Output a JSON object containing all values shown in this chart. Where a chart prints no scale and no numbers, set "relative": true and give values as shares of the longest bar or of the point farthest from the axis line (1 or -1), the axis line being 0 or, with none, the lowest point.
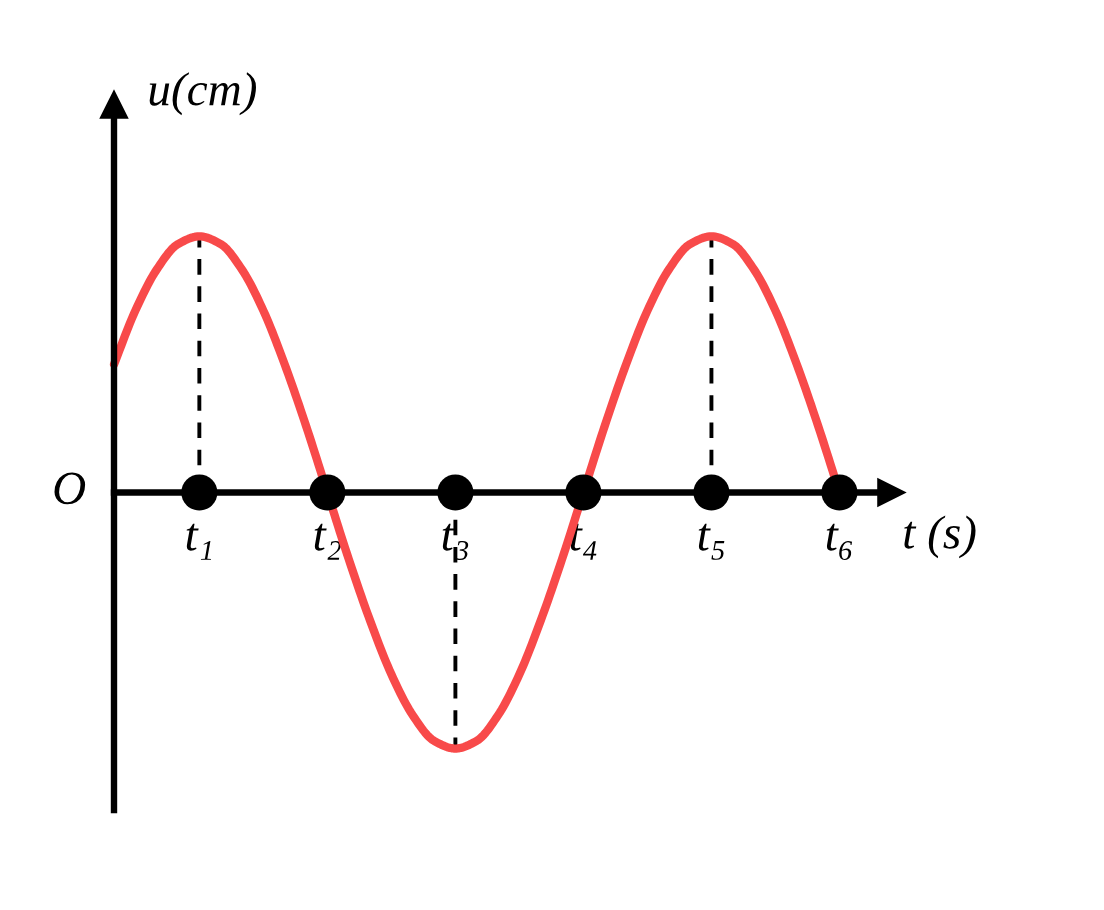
{
  "chart_data": {
    "type": "line",
    "relative": true,
    "xlabel": "t (s)",
    "ylabel": "u(cm)",
    "annotations": [
      "O"
    ],
    "categories": [
      null,
      null,
      null,
      null,
      "t₁",
      null,
      null,
      null,
      null,
      null,
      "t₂",
      null,
      null,
      null,
      null,
      null,
      "t₃",
      null,
      null,
      null,
      null,
      null,
      "t₄",
      null,
      null,
      null,
      null,
      null,
      "t₅",
      null,
      null,
      null,
      null,
      null,
      "t₆"
    ],
    "series": [
      {
        "color": "#f84a4a",
        "values": [
          0.5,
          0.71,
          0.87,
          0.97,
          1,
          0.97,
          0.87,
          0.71,
          0.5,
          0.26,
          0,
          -0.26,
          -0.5,
          -0.71,
          -0.87,
          -0.97,
          -1,
          -0.97,
          -0.87,
          -0.71,
          -0.5,
          -0.26,
          0,
          0.26,
          0.5,
          0.71,
          0.87,
          0.97,
          1,
          0.97,
          0.87,
          0.71,
          0.5,
          0.26,
          0
        ]
      },
      {
        "type": "line",
        "color": "#000000",
        "line_style": "dashed",
        "x": [
          "t₁",
          "t₁"
        ],
        "values": [
          0,
          1
        ]
      },
      {
        "type": "line",
        "color": "#000000",
        "line_style": "dashed",
        "x": [
          "t₃",
          "t₃"
        ],
        "values": [
          0,
          -1
        ]
      },
      {
        "type": "line",
        "color": "#000000",
        "line_style": "dashed",
        "x": [
          "t₅",
          "t₅"
        ],
        "values": [
          0,
          1
        ]
      },
      {
        "type": "scatter",
        "color": "#000000",
        "marker": "circle",
        "values": [
          null,
          null,
          null,
          null,
          0,
          null,
          null,
          null,
          null,
          null,
          0,
          null,
          null,
          null,
          null,
          null,
          0,
          null,
          null,
          null,
          null,
          null,
          0,
          null,
          null,
          null,
          null,
          null,
          0,
          null,
          null,
          null,
          null,
          null,
          0
        ]
      }
    ]
  }
}
